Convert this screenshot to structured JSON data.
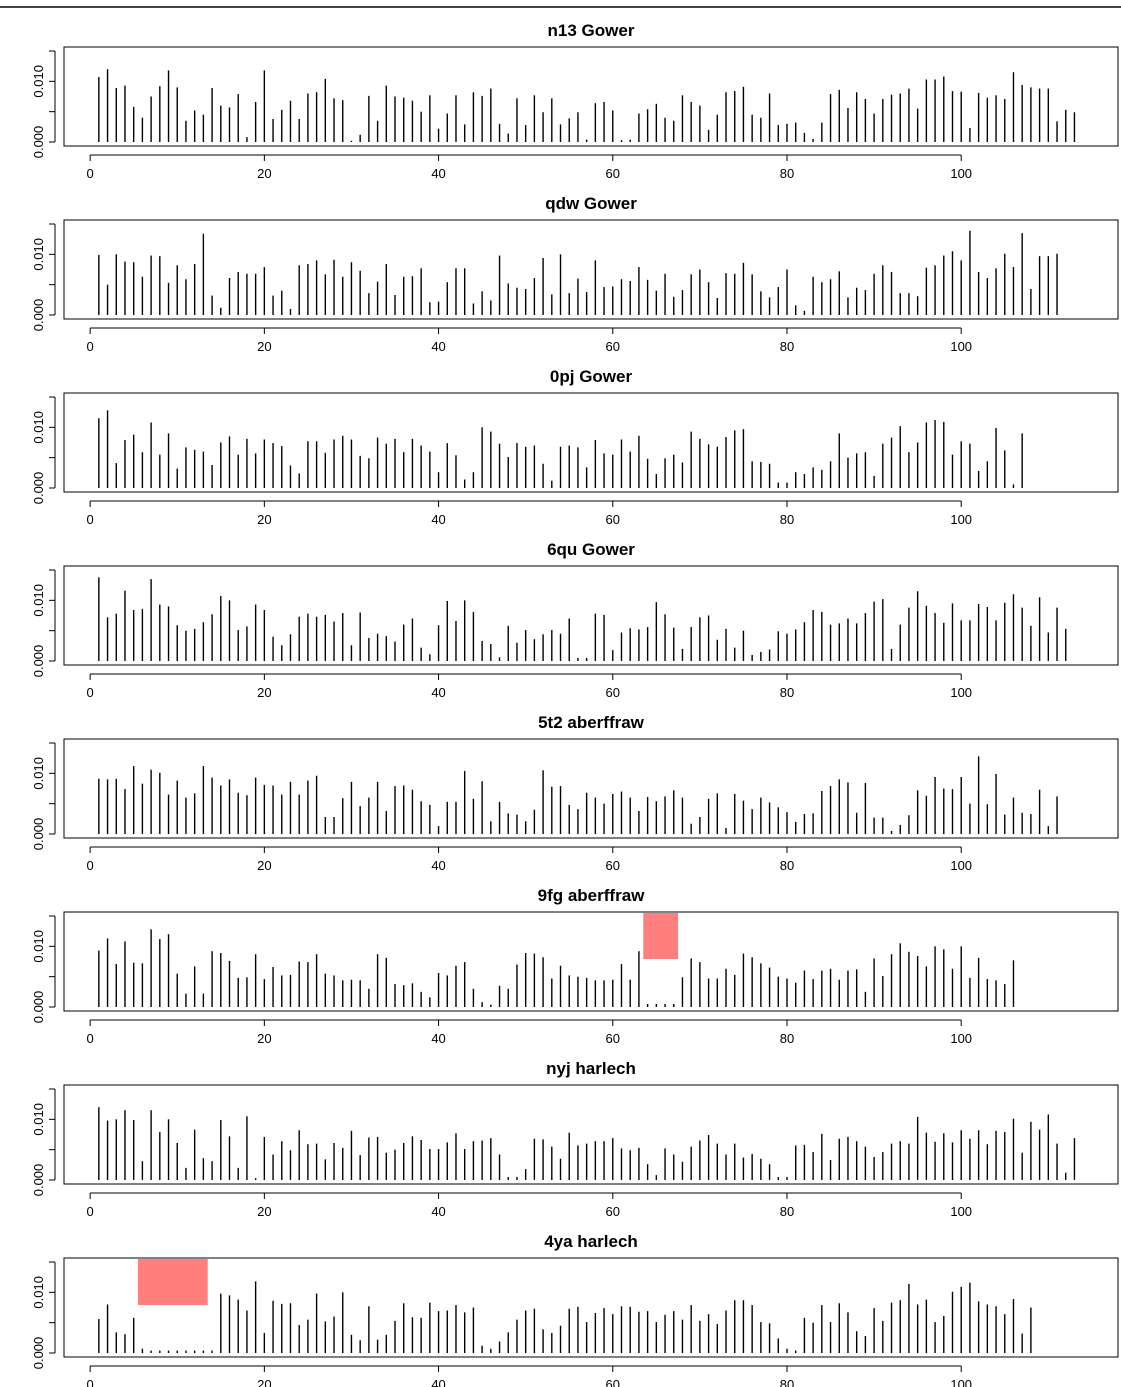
{
  "chart_data": [
    {
      "type": "bar",
      "title": "n13 Gower",
      "xlim": [
        -3,
        118
      ],
      "ylim": [
        0,
        0.015
      ],
      "xticks": [
        "0",
        "20",
        "40",
        "60",
        "80",
        "100"
      ],
      "yticks": [
        "0.000",
        "0.010"
      ],
      "highlights": [],
      "values": [
        0.0107,
        0.012,
        0.0089,
        0.0093,
        0.0058,
        0.004,
        0.0075,
        0.0092,
        0.0118,
        0.009,
        0.0035,
        0.0052,
        0.0045,
        0.0089,
        0.006,
        0.0057,
        0.0079,
        0.0008,
        0.0066,
        0.0118,
        0.0038,
        0.0053,
        0.0068,
        0.0038,
        0.008,
        0.0082,
        0.0104,
        0.0072,
        0.0069,
        0.0002,
        0.0012,
        0.0076,
        0.0035,
        0.0093,
        0.0075,
        0.0073,
        0.0068,
        0.005,
        0.0077,
        0.0022,
        0.0047,
        0.0077,
        0.0029,
        0.0082,
        0.0076,
        0.0088,
        0.003,
        0.0014,
        0.0072,
        0.0028,
        0.0077,
        0.0049,
        0.0072,
        0.0029,
        0.0039,
        0.0049,
        0.0004,
        0.0064,
        0.0066,
        0.0052,
        0.0003,
        0.0004,
        0.0047,
        0.0054,
        0.0063,
        0.004,
        0.0035,
        0.0077,
        0.0066,
        0.006,
        0.002,
        0.0045,
        0.0082,
        0.0084,
        0.0091,
        0.0045,
        0.004,
        0.008,
        0.0028,
        0.003,
        0.0032,
        0.0015,
        0.0005,
        0.0032,
        0.0079,
        0.0086,
        0.0056,
        0.0082,
        0.0071,
        0.0047,
        0.0071,
        0.0078,
        0.008,
        0.0088,
        0.0055,
        0.0103,
        0.0103,
        0.0108,
        0.0084,
        0.0083,
        0.0023,
        0.0081,
        0.0073,
        0.0077,
        0.0071,
        0.0115,
        0.0094,
        0.009,
        0.0088,
        0.0088,
        0.0034,
        0.0053,
        0.0049
      ]
    },
    {
      "type": "bar",
      "title": "qdw Gower",
      "xlim": [
        -3,
        118
      ],
      "ylim": [
        0,
        0.015
      ],
      "xticks": [
        "0",
        "20",
        "40",
        "60",
        "80",
        "100"
      ],
      "yticks": [
        "0.000",
        "0.010"
      ],
      "highlights": [],
      "values": [
        0.0099,
        0.005,
        0.01,
        0.0088,
        0.0087,
        0.0063,
        0.0098,
        0.0097,
        0.0053,
        0.0082,
        0.0059,
        0.0084,
        0.0134,
        0.0032,
        0.0012,
        0.0061,
        0.0071,
        0.0068,
        0.0068,
        0.0079,
        0.0032,
        0.004,
        0.001,
        0.0082,
        0.0084,
        0.009,
        0.0067,
        0.0091,
        0.0063,
        0.0087,
        0.0073,
        0.0036,
        0.0055,
        0.0084,
        0.0033,
        0.0063,
        0.0064,
        0.0077,
        0.0021,
        0.0022,
        0.0054,
        0.0077,
        0.0077,
        0.0019,
        0.0039,
        0.0024,
        0.0098,
        0.0052,
        0.0045,
        0.0043,
        0.0061,
        0.0094,
        0.0034,
        0.01,
        0.0036,
        0.006,
        0.0038,
        0.009,
        0.0046,
        0.0047,
        0.0059,
        0.0056,
        0.0079,
        0.0058,
        0.004,
        0.0068,
        0.003,
        0.0041,
        0.0067,
        0.0075,
        0.0054,
        0.0028,
        0.0069,
        0.0068,
        0.0086,
        0.0067,
        0.0039,
        0.0029,
        0.0046,
        0.0075,
        0.0016,
        0.0007,
        0.0063,
        0.0054,
        0.0059,
        0.0072,
        0.0029,
        0.0045,
        0.0041,
        0.0068,
        0.0082,
        0.0071,
        0.0036,
        0.0036,
        0.0031,
        0.0078,
        0.0082,
        0.0098,
        0.0105,
        0.009,
        0.0139,
        0.0071,
        0.0061,
        0.0077,
        0.0101,
        0.0079,
        0.0135,
        0.0043,
        0.0097,
        0.0097,
        0.0101
      ]
    },
    {
      "type": "bar",
      "title": "0pj Gower",
      "xlim": [
        -3,
        118
      ],
      "ylim": [
        0,
        0.015
      ],
      "xticks": [
        "0",
        "20",
        "40",
        "60",
        "80",
        "100"
      ],
      "yticks": [
        "0.000",
        "0.010"
      ],
      "highlights": [],
      "values": [
        0.0115,
        0.0128,
        0.0041,
        0.0079,
        0.0088,
        0.0059,
        0.0108,
        0.0055,
        0.009,
        0.0032,
        0.0067,
        0.0063,
        0.006,
        0.0038,
        0.0075,
        0.0085,
        0.0055,
        0.0081,
        0.0057,
        0.008,
        0.0074,
        0.0069,
        0.0037,
        0.0024,
        0.0077,
        0.0077,
        0.0058,
        0.008,
        0.0086,
        0.008,
        0.0053,
        0.0049,
        0.0083,
        0.0073,
        0.0081,
        0.0059,
        0.0081,
        0.007,
        0.006,
        0.0026,
        0.0074,
        0.0054,
        0.0014,
        0.0026,
        0.01,
        0.0093,
        0.0073,
        0.0051,
        0.0074,
        0.0068,
        0.007,
        0.004,
        0.0012,
        0.0068,
        0.007,
        0.0067,
        0.0034,
        0.0079,
        0.0057,
        0.0055,
        0.008,
        0.006,
        0.0086,
        0.0048,
        0.0023,
        0.0049,
        0.0055,
        0.0042,
        0.0093,
        0.0081,
        0.0072,
        0.0068,
        0.0084,
        0.0095,
        0.0097,
        0.0044,
        0.0043,
        0.004,
        0.0009,
        0.0009,
        0.0026,
        0.0023,
        0.0034,
        0.003,
        0.0044,
        0.009,
        0.005,
        0.0057,
        0.0059,
        0.002,
        0.0073,
        0.0083,
        0.0102,
        0.0059,
        0.0075,
        0.0108,
        0.0112,
        0.0109,
        0.0055,
        0.0077,
        0.0073,
        0.0028,
        0.0044,
        0.0099,
        0.0062,
        0.0006,
        0.009
      ]
    },
    {
      "type": "bar",
      "title": "6qu Gower",
      "xlim": [
        -3,
        118
      ],
      "ylim": [
        0,
        0.015
      ],
      "xticks": [
        "0",
        "20",
        "40",
        "60",
        "80",
        "100"
      ],
      "yticks": [
        "0.000",
        "0.010"
      ],
      "highlights": [],
      "values": [
        0.0138,
        0.0072,
        0.0078,
        0.0116,
        0.0084,
        0.0086,
        0.0135,
        0.0093,
        0.009,
        0.0059,
        0.005,
        0.0053,
        0.0064,
        0.0077,
        0.0107,
        0.01,
        0.0051,
        0.0057,
        0.0093,
        0.0084,
        0.004,
        0.0026,
        0.0044,
        0.0073,
        0.0078,
        0.0073,
        0.0076,
        0.0065,
        0.0079,
        0.0026,
        0.008,
        0.0038,
        0.0045,
        0.0041,
        0.0032,
        0.006,
        0.007,
        0.0022,
        0.0011,
        0.0059,
        0.0099,
        0.0066,
        0.01,
        0.0081,
        0.0033,
        0.0028,
        0.0006,
        0.0058,
        0.003,
        0.0051,
        0.0036,
        0.0044,
        0.0051,
        0.0045,
        0.007,
        0.0005,
        0.0005,
        0.0078,
        0.0076,
        0.0018,
        0.0047,
        0.0054,
        0.0052,
        0.0056,
        0.0097,
        0.0077,
        0.0055,
        0.002,
        0.0056,
        0.0072,
        0.0075,
        0.0035,
        0.0053,
        0.0022,
        0.005,
        0.001,
        0.0015,
        0.0019,
        0.0049,
        0.0045,
        0.0052,
        0.0064,
        0.0084,
        0.0081,
        0.006,
        0.0062,
        0.007,
        0.0062,
        0.0079,
        0.0098,
        0.0102,
        0.002,
        0.006,
        0.0088,
        0.0115,
        0.0091,
        0.0079,
        0.0063,
        0.0095,
        0.0067,
        0.0067,
        0.0094,
        0.0089,
        0.0067,
        0.0096,
        0.011,
        0.0088,
        0.0058,
        0.0105,
        0.0047,
        0.0088,
        0.0053
      ]
    },
    {
      "type": "bar",
      "title": "5t2 aberffraw",
      "xlim": [
        -3,
        118
      ],
      "ylim": [
        0,
        0.015
      ],
      "xticks": [
        "0",
        "20",
        "40",
        "60",
        "80",
        "100"
      ],
      "yticks": [
        "0.000",
        "0.010"
      ],
      "highlights": [],
      "values": [
        0.0091,
        0.009,
        0.0091,
        0.0074,
        0.0112,
        0.0083,
        0.0106,
        0.0101,
        0.0065,
        0.0088,
        0.006,
        0.0067,
        0.0112,
        0.0093,
        0.008,
        0.009,
        0.0068,
        0.0064,
        0.0093,
        0.0081,
        0.008,
        0.0065,
        0.0086,
        0.0065,
        0.0088,
        0.0096,
        0.0028,
        0.0028,
        0.0059,
        0.0086,
        0.0046,
        0.006,
        0.0086,
        0.0038,
        0.0079,
        0.008,
        0.0073,
        0.0054,
        0.0048,
        0.0013,
        0.0053,
        0.0053,
        0.0104,
        0.0058,
        0.0087,
        0.0021,
        0.0053,
        0.0034,
        0.0032,
        0.0021,
        0.004,
        0.0105,
        0.0078,
        0.0079,
        0.0048,
        0.0041,
        0.0068,
        0.006,
        0.005,
        0.0066,
        0.007,
        0.006,
        0.0038,
        0.0061,
        0.0054,
        0.0062,
        0.0072,
        0.006,
        0.0017,
        0.0028,
        0.0058,
        0.0067,
        0.001,
        0.0066,
        0.0055,
        0.0041,
        0.006,
        0.0052,
        0.0044,
        0.0036,
        0.002,
        0.0033,
        0.0034,
        0.0071,
        0.0079,
        0.009,
        0.0085,
        0.0035,
        0.0084,
        0.0027,
        0.0027,
        0.0005,
        0.0015,
        0.0031,
        0.0072,
        0.0063,
        0.0094,
        0.0075,
        0.0074,
        0.0094,
        0.005,
        0.0128,
        0.0049,
        0.0099,
        0.0032,
        0.006,
        0.0035,
        0.0033,
        0.0073,
        0.0013,
        0.0062
      ]
    },
    {
      "type": "bar",
      "title": "9fg aberffraw",
      "xlim": [
        -3,
        118
      ],
      "ylim": [
        0,
        0.015
      ],
      "xticks": [
        "0",
        "20",
        "40",
        "60",
        "80",
        "100"
      ],
      "yticks": [
        "0.000",
        "0.010"
      ],
      "highlights": [
        {
          "x0": 63.5,
          "x1": 67.5
        }
      ],
      "values": [
        0.0093,
        0.0113,
        0.0071,
        0.0108,
        0.0073,
        0.0072,
        0.0128,
        0.0112,
        0.012,
        0.0055,
        0.0022,
        0.0067,
        0.0022,
        0.0092,
        0.0089,
        0.0076,
        0.0048,
        0.0049,
        0.0087,
        0.0046,
        0.0066,
        0.0052,
        0.0053,
        0.0075,
        0.0074,
        0.0087,
        0.0055,
        0.0052,
        0.0044,
        0.0045,
        0.0044,
        0.003,
        0.0087,
        0.0081,
        0.0038,
        0.0036,
        0.0039,
        0.0025,
        0.0016,
        0.0056,
        0.0052,
        0.0068,
        0.0074,
        0.003,
        0.0008,
        0.0004,
        0.0035,
        0.003,
        0.007,
        0.0089,
        0.0088,
        0.0082,
        0.0047,
        0.0068,
        0.0052,
        0.005,
        0.0048,
        0.0044,
        0.0044,
        0.0045,
        0.0071,
        0.0045,
        0.0092,
        0.0005,
        0.0005,
        0.0005,
        0.0005,
        0.0049,
        0.008,
        0.0074,
        0.0047,
        0.0047,
        0.0063,
        0.0053,
        0.0088,
        0.0082,
        0.0072,
        0.0065,
        0.005,
        0.0047,
        0.004,
        0.006,
        0.0046,
        0.006,
        0.0063,
        0.0045,
        0.006,
        0.0062,
        0.0025,
        0.008,
        0.0051,
        0.0087,
        0.0105,
        0.0091,
        0.0084,
        0.0067,
        0.01,
        0.0095,
        0.0063,
        0.01,
        0.0048,
        0.0081,
        0.0046,
        0.0044,
        0.0038,
        0.0077
      ]
    },
    {
      "type": "bar",
      "title": "nyj harlech",
      "xlim": [
        -3,
        118
      ],
      "ylim": [
        0,
        0.015
      ],
      "xticks": [
        "0",
        "20",
        "40",
        "60",
        "80",
        "100"
      ],
      "yticks": [
        "0.000",
        "0.010"
      ],
      "highlights": [],
      "values": [
        0.012,
        0.0098,
        0.01,
        0.0115,
        0.0099,
        0.0031,
        0.0115,
        0.0079,
        0.01,
        0.0061,
        0.002,
        0.0083,
        0.0036,
        0.0031,
        0.0099,
        0.0072,
        0.002,
        0.0105,
        0.0003,
        0.0071,
        0.0042,
        0.0064,
        0.0049,
        0.0082,
        0.0059,
        0.006,
        0.0034,
        0.0061,
        0.0053,
        0.0081,
        0.0041,
        0.007,
        0.0071,
        0.0045,
        0.005,
        0.0061,
        0.0072,
        0.0066,
        0.0051,
        0.0051,
        0.0062,
        0.0077,
        0.0051,
        0.0064,
        0.0065,
        0.0069,
        0.0042,
        0.0005,
        0.0005,
        0.0018,
        0.0068,
        0.0067,
        0.0055,
        0.0035,
        0.0078,
        0.0057,
        0.006,
        0.0064,
        0.0064,
        0.0069,
        0.0052,
        0.0049,
        0.0053,
        0.0026,
        0.0008,
        0.0052,
        0.0042,
        0.003,
        0.0055,
        0.0065,
        0.0074,
        0.006,
        0.0042,
        0.006,
        0.0037,
        0.0043,
        0.0035,
        0.0026,
        0.0005,
        0.0005,
        0.0057,
        0.0058,
        0.0046,
        0.0076,
        0.0033,
        0.0068,
        0.0071,
        0.0064,
        0.0055,
        0.0038,
        0.0046,
        0.006,
        0.0064,
        0.006,
        0.0104,
        0.0078,
        0.0063,
        0.0077,
        0.0062,
        0.0082,
        0.0068,
        0.0082,
        0.0059,
        0.0081,
        0.0079,
        0.0101,
        0.0045,
        0.0096,
        0.0083,
        0.0108,
        0.006,
        0.0012,
        0.0069
      ]
    },
    {
      "type": "bar",
      "title": "4ya harlech",
      "xlim": [
        -3,
        118
      ],
      "ylim": [
        0,
        0.015
      ],
      "xticks": [
        "0",
        "20",
        "40",
        "60",
        "80",
        "100"
      ],
      "yticks": [
        "0.000",
        "0.010"
      ],
      "highlights": [
        {
          "x0": 5.5,
          "x1": 13.5
        }
      ],
      "values": [
        0.0056,
        0.008,
        0.0034,
        0.0031,
        0.0058,
        0.0007,
        0.0004,
        0.0004,
        0.0004,
        0.0004,
        0.0004,
        0.0004,
        0.0004,
        0.0004,
        0.0098,
        0.0095,
        0.0088,
        0.007,
        0.0118,
        0.0033,
        0.0086,
        0.0081,
        0.0082,
        0.0046,
        0.0055,
        0.0098,
        0.0052,
        0.006,
        0.01,
        0.003,
        0.0021,
        0.0077,
        0.0022,
        0.003,
        0.0053,
        0.0082,
        0.0059,
        0.0058,
        0.0083,
        0.0069,
        0.007,
        0.0079,
        0.0067,
        0.0075,
        0.0012,
        0.0007,
        0.0019,
        0.0034,
        0.0055,
        0.007,
        0.0073,
        0.0039,
        0.0033,
        0.0045,
        0.0073,
        0.0076,
        0.0051,
        0.0066,
        0.0074,
        0.0064,
        0.0077,
        0.0076,
        0.0068,
        0.0069,
        0.0051,
        0.0063,
        0.0069,
        0.0055,
        0.0079,
        0.0053,
        0.0064,
        0.0048,
        0.007,
        0.0087,
        0.0087,
        0.0079,
        0.0051,
        0.0049,
        0.0024,
        0.0007,
        0.0004,
        0.0058,
        0.005,
        0.0079,
        0.0051,
        0.0082,
        0.0067,
        0.0036,
        0.0028,
        0.0074,
        0.0053,
        0.0083,
        0.0087,
        0.0114,
        0.008,
        0.0088,
        0.0051,
        0.0061,
        0.0101,
        0.0109,
        0.0116,
        0.0085,
        0.008,
        0.0077,
        0.0064,
        0.0089,
        0.0032,
        0.0075
      ]
    }
  ]
}
